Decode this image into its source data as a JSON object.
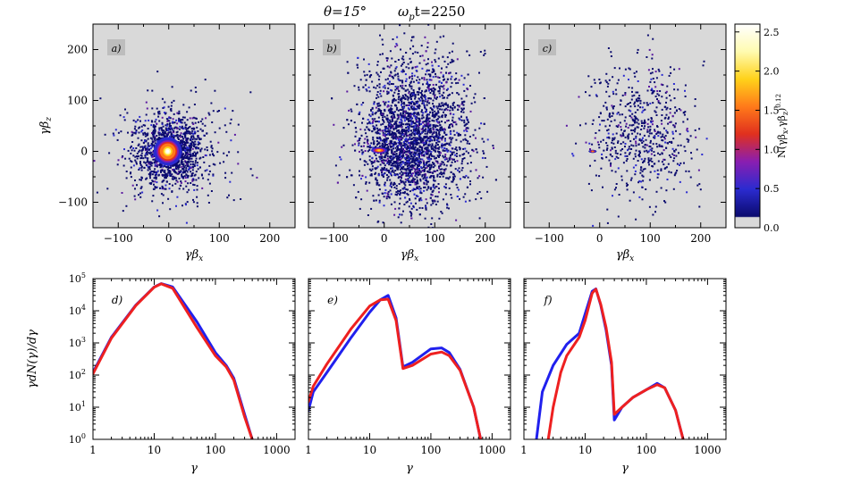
{
  "figure_title": {
    "theta": "θ=15°",
    "time": "ω",
    "time_sub": "p",
    "time_rest": "t=2250"
  },
  "colorbar": {
    "label": "N(γβ",
    "label_sub1": "x",
    "label_mid": ",γβ",
    "label_sub2": "z",
    "label_close": ")",
    "label_exp": "0.12",
    "ticks": [
      "0.0",
      "0.5",
      "1.0",
      "1.5",
      "2.0",
      "2.5"
    ],
    "tick_values": [
      0,
      0.5,
      1.0,
      1.5,
      2.0,
      2.5
    ],
    "range": [
      0,
      2.6
    ],
    "colors": [
      "#d9d9d9",
      "#0b0b6e",
      "#2b2bd0",
      "#8a1eb0",
      "#e0301e",
      "#ff7a1a",
      "#ffd21a",
      "#fffbb0",
      "#ffffff"
    ]
  },
  "chart_data": [
    {
      "type": "scatter",
      "panel": "a)",
      "xlabel": "γβ",
      "xlabel_sub": "x",
      "ylabel": "γβ",
      "ylabel_sub": "z",
      "xlim": [
        -150,
        250
      ],
      "ylim": [
        -150,
        250
      ],
      "xticks": [
        -100,
        0,
        100,
        200
      ],
      "yticks": [
        -100,
        0,
        100,
        200
      ],
      "xtick_labels": [
        "−100",
        "0",
        "100",
        "200"
      ],
      "ytick_labels": [
        "−100",
        "0",
        "100",
        "200"
      ],
      "clusters": [
        {
          "cx": 0,
          "cy": 0,
          "sx": 32,
          "sy": 32,
          "n": 1100
        },
        {
          "cx": 10,
          "cy": 5,
          "sx": 60,
          "sy": 55,
          "n": 350
        }
      ],
      "core": {
        "cx": -2,
        "cy": 0,
        "rx": 28,
        "ry": 28,
        "peak": 2.5
      },
      "background": "#d9d9d9"
    },
    {
      "type": "scatter",
      "panel": "b)",
      "xlabel": "γβ",
      "xlabel_sub": "x",
      "ylabel": "",
      "ylabel_sub": "",
      "xlim": [
        -150,
        250
      ],
      "ylim": [
        -150,
        250
      ],
      "xticks": [
        -100,
        0,
        100,
        200
      ],
      "yticks": [
        -100,
        0,
        100,
        200
      ],
      "xtick_labels": [
        "−100",
        "0",
        "100",
        "200"
      ],
      "ytick_labels": [],
      "clusters": [
        {
          "cx": 60,
          "cy": 40,
          "sx": 55,
          "sy": 75,
          "n": 2400
        },
        {
          "cx": 30,
          "cy": 0,
          "sx": 35,
          "sy": 40,
          "n": 600
        }
      ],
      "core": {
        "cx": -10,
        "cy": 2,
        "rx": 16,
        "ry": 6,
        "peak": 2.0
      },
      "background": "#d9d9d9"
    },
    {
      "type": "scatter",
      "panel": "c)",
      "xlabel": "γβ",
      "xlabel_sub": "x",
      "ylabel": "",
      "ylabel_sub": "",
      "xlim": [
        -150,
        250
      ],
      "ylim": [
        -150,
        250
      ],
      "xticks": [
        -100,
        0,
        100,
        200
      ],
      "yticks": [
        -100,
        0,
        100,
        200
      ],
      "xtick_labels": [
        "−100",
        "0",
        "100",
        "200"
      ],
      "ytick_labels": [],
      "clusters": [
        {
          "cx": 80,
          "cy": 40,
          "sx": 50,
          "sy": 65,
          "n": 650
        }
      ],
      "core": {
        "cx": -14,
        "cy": 0,
        "rx": 8,
        "ry": 3,
        "peak": 1.6
      },
      "background": "#d9d9d9"
    },
    {
      "type": "line",
      "panel": "d)",
      "xlabel": "γ",
      "ylabel": "γdN(γ)/dγ",
      "xscale": "log",
      "yscale": "log",
      "xlim": [
        1,
        2000
      ],
      "ylim": [
        1,
        100000
      ],
      "xticks": [
        1,
        10,
        100,
        1000
      ],
      "xtick_labels": [
        "1",
        "10",
        "100",
        "1000"
      ],
      "yticks": [
        1,
        10,
        100,
        1000,
        10000,
        100000
      ],
      "ytick_exps": [
        "0",
        "1",
        "2",
        "3",
        "4",
        "5"
      ],
      "series": [
        {
          "name": "blue",
          "color": "#2020ee",
          "x": [
            1,
            2,
            5,
            10,
            13,
            20,
            50,
            100,
            150,
            200,
            300,
            400
          ],
          "y": [
            120,
            1500,
            15000,
            55000,
            70000,
            55000,
            4500,
            500,
            200,
            80,
            6,
            1
          ]
        },
        {
          "name": "red",
          "color": "#ee2020",
          "x": [
            1,
            2,
            5,
            10,
            13,
            20,
            50,
            100,
            150,
            200,
            300,
            400
          ],
          "y": [
            110,
            1400,
            14500,
            54000,
            69000,
            50000,
            3000,
            400,
            180,
            70,
            5,
            1
          ]
        }
      ]
    },
    {
      "type": "line",
      "panel": "e)",
      "xlabel": "γ",
      "ylabel": "",
      "xscale": "log",
      "yscale": "log",
      "xlim": [
        1,
        2000
      ],
      "ylim": [
        1,
        100000
      ],
      "xticks": [
        1,
        10,
        100,
        1000
      ],
      "xtick_labels": [
        "1",
        "10",
        "100",
        "1000"
      ],
      "yticks": [
        1,
        10,
        100,
        1000,
        10000,
        100000
      ],
      "ytick_exps": [],
      "series": [
        {
          "name": "blue",
          "color": "#2020ee",
          "x": [
            1,
            1.2,
            2,
            5,
            10,
            15,
            20,
            27,
            35,
            50,
            100,
            150,
            200,
            300,
            500,
            650
          ],
          "y": [
            8,
            30,
            120,
            1500,
            9000,
            22000,
            30000,
            6000,
            180,
            250,
            650,
            700,
            500,
            150,
            10,
            1
          ]
        },
        {
          "name": "red",
          "color": "#ee2020",
          "x": [
            1,
            1.2,
            2,
            5,
            10,
            15,
            20,
            27,
            35,
            50,
            100,
            150,
            200,
            300,
            500,
            650
          ],
          "y": [
            15,
            45,
            220,
            2800,
            14000,
            22000,
            23000,
            5000,
            160,
            200,
            450,
            520,
            400,
            140,
            10,
            1
          ]
        }
      ]
    },
    {
      "type": "line",
      "panel": "f)",
      "xlabel": "γ",
      "ylabel": "",
      "xscale": "log",
      "yscale": "log",
      "xlim": [
        1,
        2000
      ],
      "ylim": [
        1,
        100000
      ],
      "xticks": [
        1,
        10,
        100,
        1000
      ],
      "xtick_labels": [
        "1",
        "10",
        "100",
        "1000"
      ],
      "yticks": [
        1,
        10,
        100,
        1000,
        10000,
        100000
      ],
      "ytick_exps": [],
      "series": [
        {
          "name": "blue",
          "color": "#2020ee",
          "x": [
            1.6,
            2,
            3,
            5,
            8,
            10,
            13,
            15,
            18,
            22,
            27,
            30,
            40,
            60,
            100,
            150,
            200,
            300,
            400
          ],
          "y": [
            1,
            30,
            200,
            900,
            2000,
            8000,
            40000,
            48000,
            15000,
            2500,
            200,
            4,
            10,
            20,
            35,
            55,
            40,
            8,
            1
          ]
        },
        {
          "name": "red",
          "color": "#ee2020",
          "x": [
            2.5,
            3,
            4,
            5,
            8,
            10,
            13,
            15,
            18,
            22,
            27,
            30,
            40,
            60,
            100,
            150,
            200,
            300,
            400
          ],
          "y": [
            1,
            10,
            120,
            400,
            1500,
            5000,
            35000,
            47000,
            16000,
            3000,
            250,
            6,
            10,
            20,
            35,
            50,
            40,
            8,
            1
          ]
        }
      ]
    }
  ]
}
